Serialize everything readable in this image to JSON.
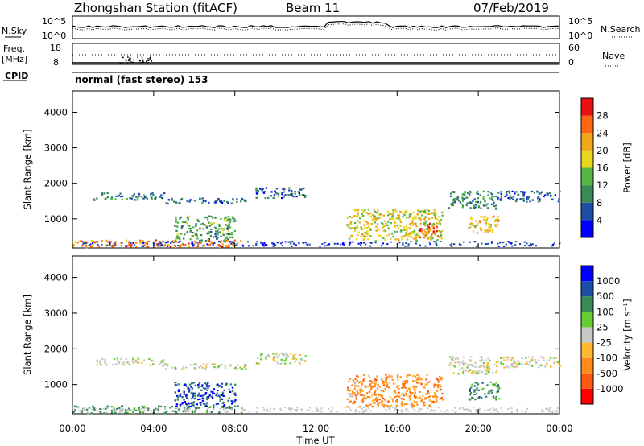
{
  "header": {
    "station": "Zhongshan Station (fitACF)",
    "beam": "Beam 11",
    "date": "07/Feb/2019"
  },
  "strip_labels": {
    "nsky": "N.Sky",
    "nsearch": "N.Search",
    "freq": "Freq.",
    "freq_unit": "[MHz]",
    "nave": "Nave",
    "cpid": "CPID",
    "cpid_text": "normal (fast stereo) 153"
  },
  "strip_ticks": {
    "nsky_top": "10^5",
    "nsky_bottom": "10^0",
    "nsearch_top": "10^5",
    "nsearch_bottom": "10^0",
    "freq_top": "18",
    "freq_bottom": "8",
    "nave_top": "60",
    "nave_bottom": "0"
  },
  "x_axis": {
    "label": "Time UT",
    "ticks": [
      "00:00",
      "04:00",
      "08:00",
      "12:00",
      "16:00",
      "20:00",
      "00:00"
    ]
  },
  "colors": {
    "power": [
      "#0000ff",
      "#1c4ea8",
      "#3a8a58",
      "#55b845",
      "#e8d61a",
      "#f2a61c",
      "#ff6611",
      "#e81010"
    ],
    "velocity": [
      "#ff0000",
      "#ff5a10",
      "#ff8c1c",
      "#ffb830",
      "#c8c8c8",
      "#66cc33",
      "#3a8a58",
      "#1c4ea8",
      "#0000ff"
    ]
  },
  "chart_data": [
    {
      "type": "heatmap",
      "name": "power",
      "ylabel": "Slant Range [km]",
      "x_unit": "hours UT",
      "xlim": [
        0,
        24
      ],
      "ylim": [
        180,
        4600
      ],
      "y_ticks": [
        1000,
        2000,
        3000,
        4000
      ],
      "colorbar": {
        "label": "Power [dB]",
        "ticks": [
          "4",
          "8",
          "12",
          "16",
          "20",
          "24",
          "28"
        ],
        "range": [
          0,
          32
        ]
      },
      "echo_regions": [
        {
          "t0": 0.0,
          "t1": 8.3,
          "r0": 220,
          "r1": 420,
          "level": 24
        },
        {
          "t0": 1.0,
          "t1": 4.5,
          "r0": 1550,
          "r1": 1750,
          "level": 10
        },
        {
          "t0": 4.5,
          "t1": 8.5,
          "r0": 1450,
          "r1": 1600,
          "level": 8
        },
        {
          "t0": 9.0,
          "t1": 11.5,
          "r0": 1600,
          "r1": 1900,
          "level": 7
        },
        {
          "t0": 5.0,
          "t1": 8.0,
          "r0": 400,
          "r1": 1100,
          "level": 12
        },
        {
          "t0": 13.5,
          "t1": 18.2,
          "r0": 400,
          "r1": 1300,
          "level": 18
        },
        {
          "t0": 17.0,
          "t1": 18.0,
          "r0": 500,
          "r1": 900,
          "level": 26
        },
        {
          "t0": 18.5,
          "t1": 21.0,
          "r0": 1300,
          "r1": 1800,
          "level": 10
        },
        {
          "t0": 21.0,
          "t1": 24.0,
          "r0": 1500,
          "r1": 1800,
          "level": 6
        },
        {
          "t0": 19.5,
          "t1": 21.0,
          "r0": 600,
          "r1": 1100,
          "level": 20
        }
      ]
    },
    {
      "type": "heatmap",
      "name": "velocity",
      "ylabel": "Slant Range [km]",
      "x_unit": "hours UT",
      "xlim": [
        0,
        24
      ],
      "ylim": [
        180,
        4600
      ],
      "y_ticks": [
        1000,
        2000,
        3000,
        4000
      ],
      "colorbar": {
        "label": "Velocity [m s⁻¹]",
        "ticks": [
          "-1000",
          "-500",
          "-100",
          "-25",
          "25",
          "100",
          "500",
          "1000"
        ]
      },
      "echo_regions": [
        {
          "t0": 0.0,
          "t1": 8.3,
          "r0": 220,
          "r1": 420,
          "level": 200
        },
        {
          "t0": 1.0,
          "t1": 4.5,
          "r0": 1550,
          "r1": 1750,
          "level": 0
        },
        {
          "t0": 4.5,
          "t1": 8.5,
          "r0": 1450,
          "r1": 1600,
          "level": 0
        },
        {
          "t0": 9.0,
          "t1": 11.5,
          "r0": 1600,
          "r1": 1900,
          "level": 0
        },
        {
          "t0": 5.0,
          "t1": 8.0,
          "r0": 400,
          "r1": 1100,
          "level": 800
        },
        {
          "t0": 13.5,
          "t1": 18.2,
          "r0": 400,
          "r1": 1300,
          "level": -300
        },
        {
          "t0": 18.5,
          "t1": 21.0,
          "r0": 1300,
          "r1": 1800,
          "level": 0
        },
        {
          "t0": 21.0,
          "t1": 24.0,
          "r0": 1500,
          "r1": 1800,
          "level": 0
        },
        {
          "t0": 19.5,
          "t1": 21.0,
          "r0": 600,
          "r1": 1100,
          "level": 300
        }
      ]
    }
  ]
}
